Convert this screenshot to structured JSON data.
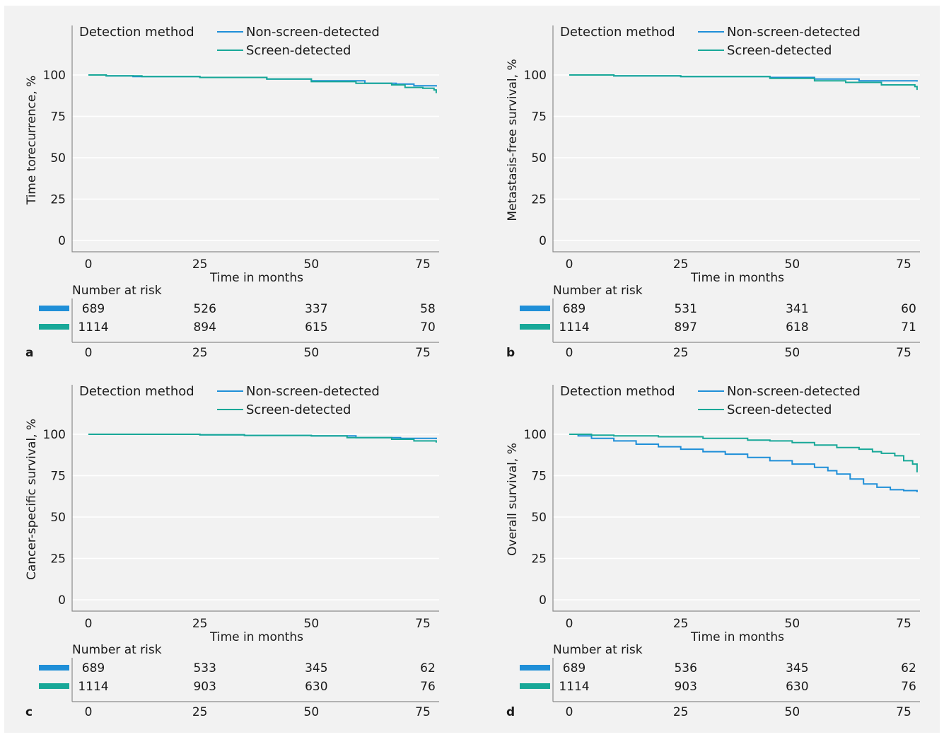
{
  "colors": {
    "non_screen": "#1f8fd8",
    "screen": "#18a898",
    "background": "#f2f2f2",
    "grid": "#ffffff"
  },
  "chart_data": [
    {
      "type": "line",
      "panel": "a",
      "ylabel": "Time torecurrence, %",
      "xlabel": "Time in months",
      "xlim": [
        0,
        78
      ],
      "ylim": [
        0,
        100
      ],
      "xticks": [
        0,
        25,
        50,
        75
      ],
      "yticks": [
        0,
        25,
        50,
        75,
        100
      ],
      "grid": true,
      "legend": {
        "title": "Detection method",
        "position": "top"
      },
      "series": [
        {
          "name": "Non-screen-detected",
          "color": "#1f8fd8",
          "x": [
            0,
            4,
            10,
            25,
            40,
            50,
            62,
            69,
            73,
            78
          ],
          "y": [
            100,
            99.5,
            99,
            98.5,
            97.5,
            96.5,
            95,
            94.5,
            93.5,
            93
          ]
        },
        {
          "name": "Screen-detected",
          "color": "#18a898",
          "x": [
            0,
            4,
            12,
            25,
            40,
            50,
            60,
            68,
            71,
            75,
            77.5,
            78
          ],
          "y": [
            100,
            99.5,
            99,
            98.5,
            97.5,
            96,
            95,
            94,
            92.5,
            92,
            91,
            89
          ]
        }
      ],
      "risk_table": {
        "title": "Number at risk",
        "times": [
          0,
          25,
          50,
          75
        ],
        "rows": [
          {
            "name": "Non-screen-detected",
            "counts": [
              "689",
              "526",
              "337",
              "58"
            ]
          },
          {
            "name": "Screen-detected",
            "counts": [
              "1114",
              "894",
              "615",
              "70"
            ]
          }
        ]
      }
    },
    {
      "type": "line",
      "panel": "b",
      "ylabel": "Metastasis-free survival, %",
      "xlabel": "Time in months",
      "xlim": [
        0,
        78
      ],
      "ylim": [
        0,
        100
      ],
      "xticks": [
        0,
        25,
        50,
        75
      ],
      "yticks": [
        0,
        25,
        50,
        75,
        100
      ],
      "grid": true,
      "legend": {
        "title": "Detection method",
        "position": "top"
      },
      "series": [
        {
          "name": "Non-screen-detected",
          "color": "#1f8fd8",
          "x": [
            0,
            10,
            25,
            45,
            55,
            65,
            78
          ],
          "y": [
            100,
            99.5,
            99,
            98.5,
            97.5,
            96.5,
            96
          ]
        },
        {
          "name": "Screen-detected",
          "color": "#18a898",
          "x": [
            0,
            10,
            25,
            45,
            55,
            62,
            70,
            77.5,
            78
          ],
          "y": [
            100,
            99.5,
            99,
            98,
            96.5,
            95.5,
            94,
            93,
            91
          ]
        }
      ],
      "risk_table": {
        "title": "Number at risk",
        "times": [
          0,
          25,
          50,
          75
        ],
        "rows": [
          {
            "name": "Non-screen-detected",
            "counts": [
              "689",
              "531",
              "341",
              "60"
            ]
          },
          {
            "name": "Screen-detected",
            "counts": [
              "1114",
              "897",
              "618",
              "71"
            ]
          }
        ]
      }
    },
    {
      "type": "line",
      "panel": "c",
      "ylabel": "Cancer-specific survival, %",
      "xlabel": "Time in months",
      "xlim": [
        0,
        78
      ],
      "ylim": [
        0,
        100
      ],
      "xticks": [
        0,
        25,
        50,
        75
      ],
      "yticks": [
        0,
        25,
        50,
        75,
        100
      ],
      "grid": true,
      "legend": {
        "title": "Detection method",
        "position": "top"
      },
      "series": [
        {
          "name": "Non-screen-detected",
          "color": "#1f8fd8",
          "x": [
            0,
            25,
            35,
            50,
            60,
            70,
            78
          ],
          "y": [
            100,
            99.7,
            99.3,
            99,
            98,
            97.5,
            97
          ]
        },
        {
          "name": "Screen-detected",
          "color": "#18a898",
          "x": [
            0,
            25,
            35,
            50,
            58,
            68,
            73,
            78
          ],
          "y": [
            100,
            99.7,
            99.3,
            99,
            98,
            97,
            96,
            95
          ]
        }
      ],
      "risk_table": {
        "title": "Number at risk",
        "times": [
          0,
          25,
          50,
          75
        ],
        "rows": [
          {
            "name": "Non-screen-detected",
            "counts": [
              "689",
              "533",
              "345",
              "62"
            ]
          },
          {
            "name": "Screen-detected",
            "counts": [
              "1114",
              "903",
              "630",
              "76"
            ]
          }
        ]
      }
    },
    {
      "type": "line",
      "panel": "d",
      "ylabel": "Overall survival, %",
      "xlabel": "Time in months",
      "xlim": [
        0,
        78
      ],
      "ylim": [
        0,
        100
      ],
      "xticks": [
        0,
        25,
        50,
        75
      ],
      "yticks": [
        0,
        25,
        50,
        75,
        100
      ],
      "grid": true,
      "legend": {
        "title": "Detection method",
        "position": "top"
      },
      "series": [
        {
          "name": "Non-screen-detected",
          "color": "#1f8fd8",
          "x": [
            0,
            2,
            5,
            10,
            15,
            20,
            25,
            30,
            35,
            40,
            45,
            50,
            55,
            58,
            60,
            63,
            66,
            69,
            72,
            75,
            78
          ],
          "y": [
            100,
            99,
            97.5,
            96,
            94,
            92.5,
            91,
            89.5,
            88,
            86,
            84,
            82,
            80,
            78,
            76,
            73,
            70,
            68,
            66.5,
            66,
            65
          ]
        },
        {
          "name": "Screen-detected",
          "color": "#18a898",
          "x": [
            0,
            5,
            10,
            20,
            30,
            40,
            45,
            50,
            55,
            60,
            65,
            68,
            70,
            73,
            75,
            77,
            78
          ],
          "y": [
            100,
            99.5,
            99,
            98.5,
            97.5,
            96.5,
            96,
            95,
            93.5,
            92,
            91,
            89.5,
            88.5,
            87,
            84,
            82,
            77
          ]
        }
      ],
      "risk_table": {
        "title": "Number at risk",
        "times": [
          0,
          25,
          50,
          75
        ],
        "rows": [
          {
            "name": "Non-screen-detected",
            "counts": [
              "689",
              "536",
              "345",
              "62"
            ]
          },
          {
            "name": "Screen-detected",
            "counts": [
              "1114",
              "903",
              "630",
              "76"
            ]
          }
        ]
      }
    }
  ]
}
